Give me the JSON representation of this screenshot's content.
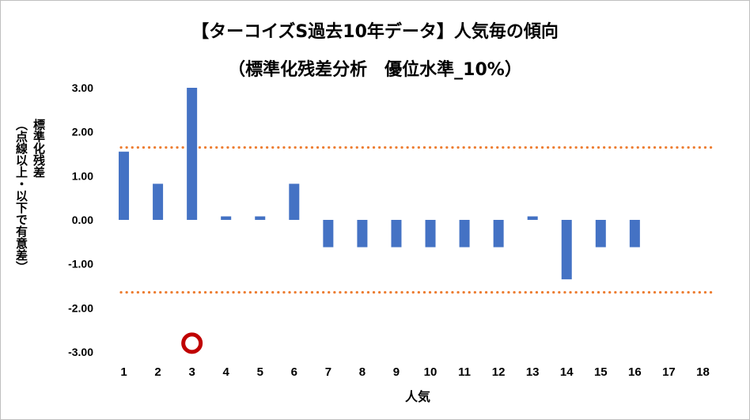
{
  "chart_data": {
    "type": "bar",
    "title_line1": "【ターコイズS過去10年データ】人気毎の傾向",
    "title_line2": "（標準化残差分析　優位水準_10%）",
    "xlabel": "人気",
    "ylabel_main": "標準化残差",
    "ylabel_sub": "（点線以上・以下で有意差）",
    "categories": [
      "1",
      "2",
      "3",
      "4",
      "5",
      "6",
      "7",
      "8",
      "9",
      "10",
      "11",
      "12",
      "13",
      "14",
      "15",
      "16",
      "17",
      "18"
    ],
    "values": [
      1.55,
      0.82,
      3.0,
      0.08,
      0.08,
      0.82,
      -0.62,
      -0.62,
      -0.62,
      -0.62,
      -0.62,
      -0.62,
      0.08,
      -1.35,
      -0.62,
      -0.62,
      0,
      0
    ],
    "yticks": [
      "3.00",
      "2.00",
      "1.00",
      "0.00",
      "-1.00",
      "-2.00",
      "-3.00"
    ],
    "ylim": [
      -3,
      3
    ],
    "threshold_upper": 1.645,
    "threshold_lower": -1.645,
    "bar_color": "#4472c4",
    "threshold_color": "#ed7d31",
    "marker_category": "3",
    "marker_value": -2.8,
    "marker_color": "#c00000"
  }
}
